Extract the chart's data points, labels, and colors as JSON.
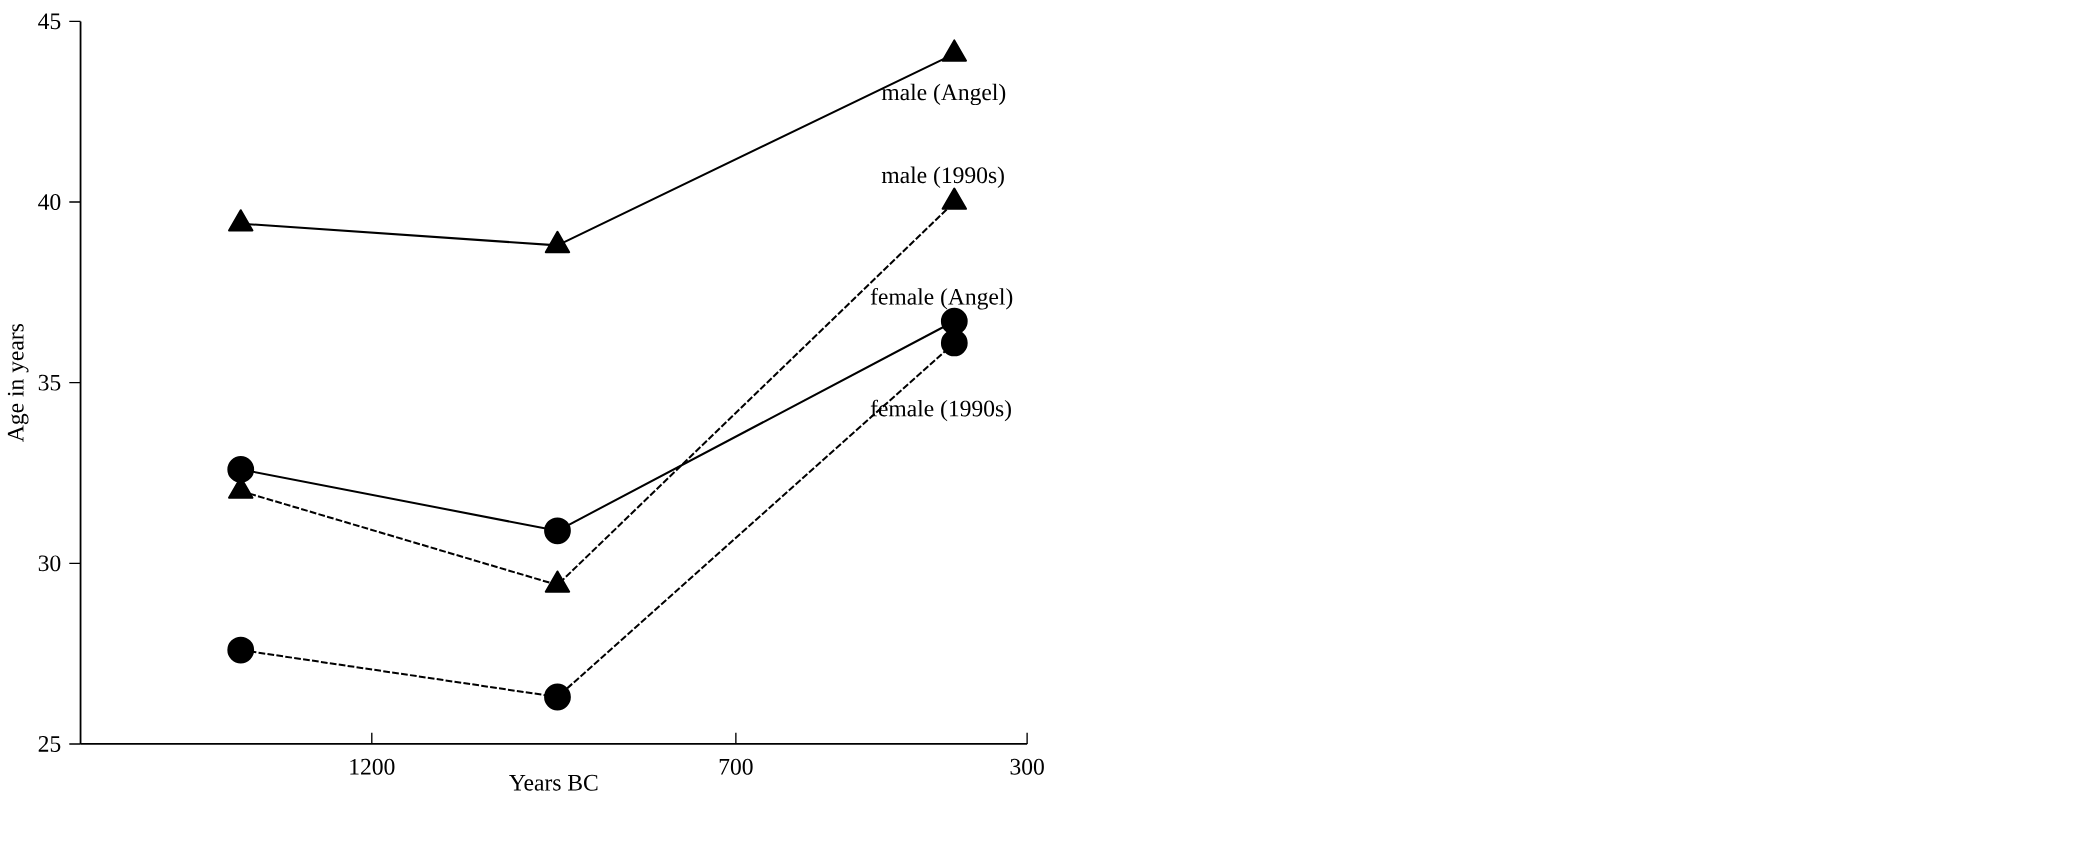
{
  "chart_data": {
    "type": "line",
    "xlabel": "Years BC",
    "ylabel": "Age in years",
    "x": [
      1380,
      945,
      400
    ],
    "xlim": [
      1600,
      300
    ],
    "xticks": [
      1200,
      700,
      300
    ],
    "ylim": [
      25,
      45
    ],
    "yticks": [
      25,
      30,
      35,
      40,
      45
    ],
    "grid": false,
    "series": [
      {
        "name": "male (Angel)",
        "color": "#000000",
        "values": [
          39.4,
          38.8,
          44.1
        ],
        "marker": "triangle",
        "line_style": "solid"
      },
      {
        "name": "male (1990s)",
        "color": "#000000",
        "values": [
          32.0,
          29.4,
          40.0
        ],
        "marker": "triangle",
        "line_style": "dashed"
      },
      {
        "name": "female (Angel)",
        "color": "#000000",
        "values": [
          32.6,
          30.9,
          36.7
        ],
        "marker": "circle",
        "line_style": "solid"
      },
      {
        "name": "female (1990s)",
        "color": "#000000",
        "values": [
          27.6,
          26.3,
          36.1
        ],
        "marker": "circle",
        "line_style": "dashed"
      }
    ]
  }
}
